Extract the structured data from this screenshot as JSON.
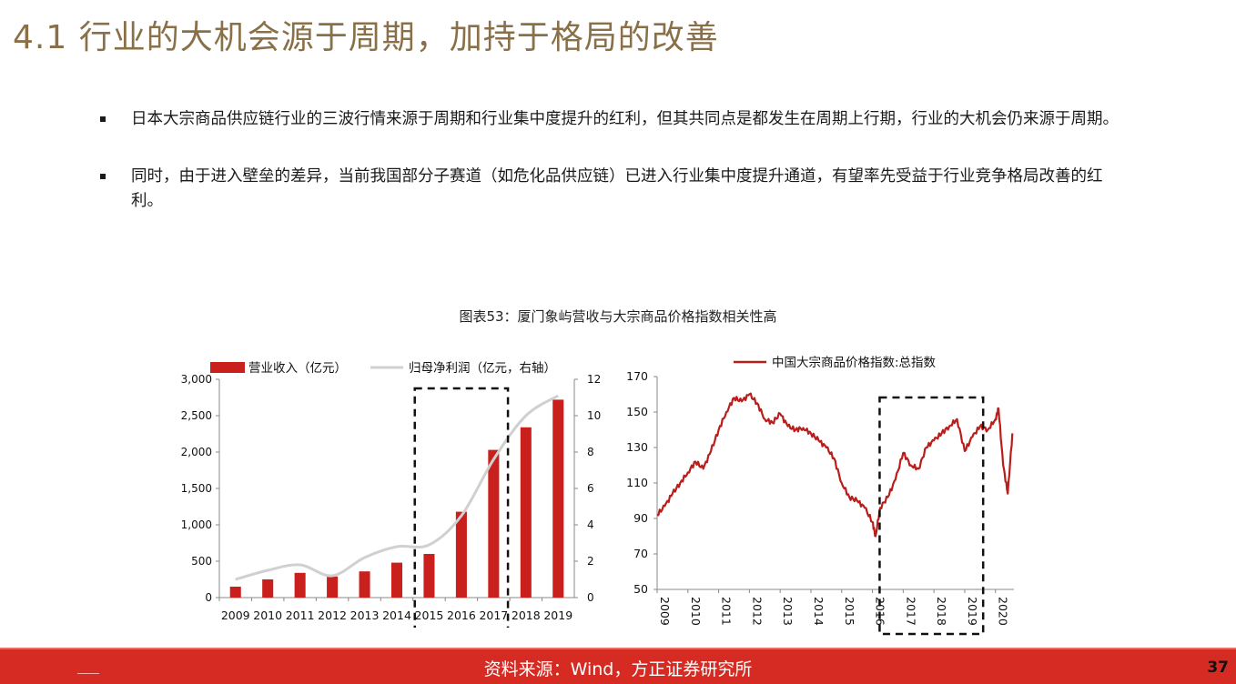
{
  "title": "4.1 行业的大机会源于周期，加持于格局的改善",
  "bullets": [
    "日本大宗商品供应链行业的三波行情来源于周期和行业集中度提升的红利，但其共同点是都发生在周期上行期，行业的大机会仍来源于周期。",
    "同时，由于进入壁垒的差异，当前我国部分子赛道（如危化品供应链）已进入行业集中度提升通道，有望率先受益于行业竞争格局改善的红利。"
  ],
  "figure_caption": "图表53：厦门象屿营收与大宗商品价格指数相关性高",
  "footer": {
    "source": "资料来源：Wind，方正证券研究所",
    "page": "37"
  },
  "colors": {
    "bar": "#c9201d",
    "profit_line": "#d0d0d0",
    "index_line": "#b81e1b",
    "title": "#8a7048",
    "footer": "#d52b23"
  },
  "chart_data": [
    {
      "type": "bar",
      "categories": [
        "2009",
        "2010",
        "2011",
        "2012",
        "2013",
        "2014",
        "2015",
        "2016",
        "2017",
        "2018",
        "2019"
      ],
      "series": [
        {
          "name": "营业收入（亿元）",
          "type": "bar",
          "axis": "left",
          "values": [
            150,
            250,
            340,
            290,
            360,
            480,
            600,
            1180,
            2030,
            2340,
            2720
          ]
        },
        {
          "name": "归母净利润（亿元，右轴）",
          "type": "line",
          "axis": "right",
          "values": [
            1.0,
            1.5,
            1.8,
            1.2,
            2.2,
            2.8,
            2.9,
            4.5,
            7.6,
            10.0,
            11.1
          ]
        }
      ],
      "ylim": [
        0,
        3000
      ],
      "y_ticks": [
        "0",
        "500",
        "1,000",
        "1,500",
        "2,000",
        "2,500",
        "3,000"
      ],
      "y2lim": [
        0,
        12
      ],
      "y2_ticks": [
        "0",
        "2",
        "4",
        "6",
        "8",
        "10",
        "12"
      ],
      "legend": "top",
      "highlight_range": [
        "2015",
        "2017"
      ]
    },
    {
      "type": "line",
      "series": [
        {
          "name": "中国大宗商品价格指数:总指数",
          "x": [
            2009.0,
            2009.25,
            2009.5,
            2009.75,
            2010.0,
            2010.25,
            2010.5,
            2010.75,
            2011.0,
            2011.25,
            2011.5,
            2011.75,
            2012.0,
            2012.25,
            2012.5,
            2012.75,
            2013.0,
            2013.25,
            2013.5,
            2013.75,
            2014.0,
            2014.25,
            2014.5,
            2014.75,
            2015.0,
            2015.25,
            2015.5,
            2015.75,
            2016.0,
            2016.1,
            2016.25,
            2016.5,
            2016.75,
            2017.0,
            2017.25,
            2017.5,
            2017.75,
            2018.0,
            2018.25,
            2018.5,
            2018.75,
            2019.0,
            2019.25,
            2019.5,
            2019.75,
            2020.0,
            2020.1,
            2020.25,
            2020.4,
            2020.55
          ],
          "values": [
            92,
            97,
            104,
            110,
            116,
            122,
            118,
            128,
            140,
            150,
            158,
            156,
            160,
            155,
            146,
            144,
            149,
            142,
            140,
            141,
            138,
            134,
            130,
            124,
            110,
            102,
            100,
            96,
            88,
            80,
            96,
            102,
            112,
            127,
            120,
            118,
            130,
            134,
            138,
            142,
            146,
            128,
            136,
            142,
            140,
            146,
            152,
            120,
            104,
            138
          ]
        }
      ],
      "x_ticks": [
        "2009",
        "2010",
        "2011",
        "2012",
        "2013",
        "2014",
        "2015",
        "2016",
        "2017",
        "2018",
        "2019",
        "2020"
      ],
      "ylim": [
        50,
        170
      ],
      "y_ticks": [
        "50",
        "70",
        "90",
        "110",
        "130",
        "150",
        "170"
      ],
      "legend": "top",
      "highlight_range": [
        "2016.5",
        "2019.6"
      ]
    }
  ]
}
